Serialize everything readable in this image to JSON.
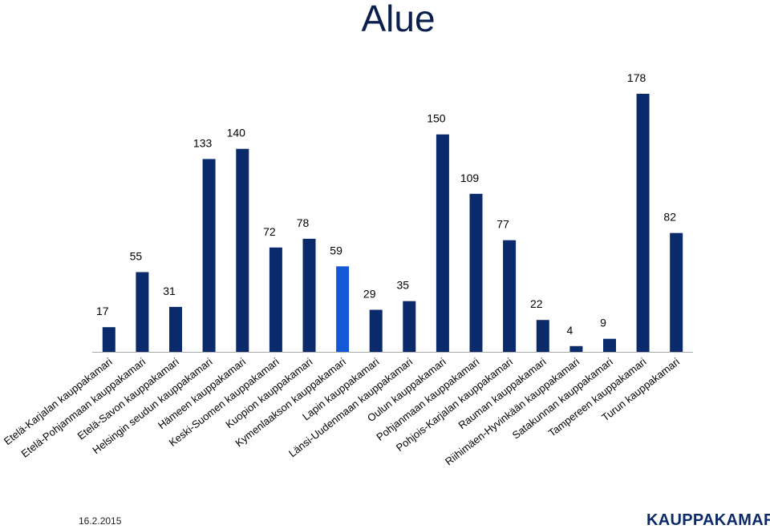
{
  "title": "Alue",
  "footer": {
    "date": "16.2.2015",
    "logo": "KAUPPAKAMARI"
  },
  "colors": {
    "bar": "#0b2a6b",
    "highlight": "#1458d6",
    "axis": "#a8a8a8",
    "text": "#000000"
  },
  "chart_data": {
    "type": "bar",
    "title": "Alue",
    "xlabel": "",
    "ylabel": "",
    "ylim": [
      0,
      178
    ],
    "grid": false,
    "legend": "none",
    "highlight_index": 7,
    "categories": [
      "Etelä-Karjalan kauppakamari",
      "Etelä-Pohjanmaan kauppakamari",
      "Etelä-Savon kauppakamari",
      "Helsingin seudun kauppakamari",
      "Hämeen kauppakamari",
      "Keski-Suomen kauppakamari",
      "Kuopion kauppakamari",
      "Kymenlaakson kauppakamari",
      "Lapin kauppakamari",
      "Länsi-Uudenmaan kauppakamari",
      "Oulun kauppakamari",
      "Pohjanmaan kauppakamari",
      "Pohjois-Karjalan kauppakamari",
      "Rauman kauppakamari",
      "Riihimäen-Hyvinkään kauppakamari",
      "Satakunnan kauppakamari",
      "Tampereen kauppakamari",
      "Turun kauppakamari"
    ],
    "values": [
      17,
      55,
      31,
      133,
      140,
      72,
      78,
      59,
      29,
      35,
      150,
      109,
      77,
      22,
      4,
      9,
      178,
      82
    ],
    "data_labels": [
      "17",
      "55",
      "31",
      "133",
      "140",
      "72",
      "78",
      "59",
      "29",
      "35",
      "150",
      "109",
      "77",
      "22",
      "4",
      "9",
      "178",
      "82"
    ]
  }
}
